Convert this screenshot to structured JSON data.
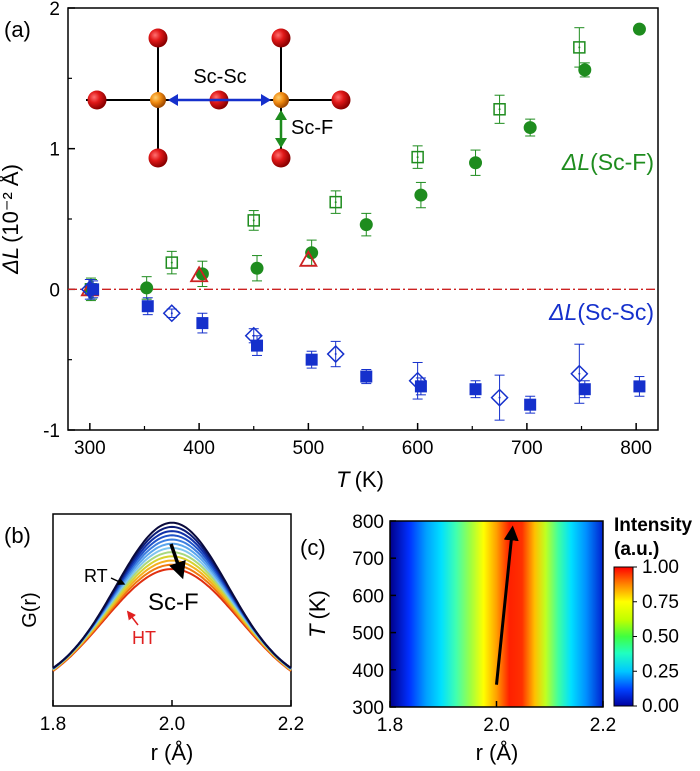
{
  "chart_data": [
    {
      "panel": "(a)",
      "type": "scatter",
      "xlabel_italic": "T",
      "xlabel_unit": "(K)",
      "ylabel_sym": "ΔL",
      "ylabel_unit": "(10⁻² Å)",
      "xlim": [
        280,
        820
      ],
      "ylim": [
        -1,
        2
      ],
      "xticks": [
        300,
        400,
        500,
        600,
        700,
        800
      ],
      "yticks": [
        -1,
        0,
        1,
        2
      ],
      "zero_line": true,
      "annotations": {
        "scf_label_sym": "ΔL",
        "scf_label_text": "(Sc-F)",
        "scsc_label_sym": "ΔL",
        "scsc_label_text": "(Sc-Sc)",
        "inset_scsc": "Sc-Sc",
        "inset_scf": "Sc-F"
      },
      "series": [
        {
          "name": "Sc-F filled circle",
          "marker": "circle-filled",
          "color": "#1e8c1e",
          "x": [
            302,
            352,
            403,
            453,
            503,
            553,
            603,
            653,
            703,
            753,
            803
          ],
          "y": [
            0.0,
            0.01,
            0.11,
            0.15,
            0.26,
            0.46,
            0.67,
            0.9,
            1.15,
            1.56,
            1.85
          ],
          "err": [
            0.07,
            0.08,
            0.09,
            0.09,
            0.09,
            0.08,
            0.09,
            0.09,
            0.06,
            0.05,
            0.02
          ]
        },
        {
          "name": "Sc-F open square",
          "marker": "square-open",
          "color": "#1e8c1e",
          "x": [
            301,
            375,
            450,
            525,
            600,
            675,
            748
          ],
          "y": [
            0.0,
            0.19,
            0.49,
            0.62,
            0.94,
            1.28,
            1.72
          ],
          "err": [
            0.08,
            0.08,
            0.07,
            0.08,
            0.08,
            0.1,
            0.14
          ]
        },
        {
          "name": "Sc-F open triangle",
          "marker": "triangle-open",
          "color": "#cc2222",
          "x": [
            300,
            400,
            500
          ],
          "y": [
            0.0,
            0.1,
            0.21
          ],
          "err": [
            0,
            0,
            0
          ]
        },
        {
          "name": "Sc-Sc filled square",
          "marker": "square-filled",
          "color": "#1530cc",
          "x": [
            303,
            353,
            403,
            453,
            503,
            553,
            603,
            653,
            703,
            753,
            803
          ],
          "y": [
            0.0,
            -0.12,
            -0.24,
            -0.4,
            -0.5,
            -0.62,
            -0.69,
            -0.71,
            -0.82,
            -0.71,
            -0.69
          ],
          "err": [
            0.06,
            0.06,
            0.07,
            0.07,
            0.06,
            0.05,
            0.06,
            0.06,
            0.06,
            0.06,
            0.07
          ]
        },
        {
          "name": "Sc-Sc open diamond",
          "marker": "diamond-open",
          "color": "#1530cc",
          "x": [
            300,
            375,
            450,
            525,
            600,
            675,
            748
          ],
          "y": [
            0.0,
            -0.17,
            -0.33,
            -0.46,
            -0.65,
            -0.77,
            -0.6
          ],
          "err": [
            0.07,
            0.03,
            0.05,
            0.09,
            0.13,
            0.16,
            0.21
          ]
        }
      ]
    },
    {
      "panel": "(b)",
      "type": "line",
      "ylabel": "G(r)",
      "xlabel": "r (Å)",
      "xlim": [
        1.8,
        2.2
      ],
      "xticks": [
        "1.8",
        "2.0",
        "2.2"
      ],
      "annotations": {
        "rt": "RT",
        "ht": "HT",
        "peak": "Sc-F"
      },
      "series_description": "G(r) peak curves from room temperature (RT, dark blue/black) to high temperature (HT, red); peak height decreases and broadens with temperature",
      "peak_center": 2.0,
      "curve_colors": [
        "#0a0a3c",
        "#0c1c78",
        "#1030a8",
        "#1f52c8",
        "#3c7ee0",
        "#5aa5ee",
        "#7fc5f0",
        "#a8d880",
        "#d8d230",
        "#f4b020",
        "#f07a10",
        "#e03010"
      ]
    },
    {
      "panel": "(c)",
      "type": "heatmap",
      "xlabel": "r (Å)",
      "ylabel_italic": "T",
      "ylabel_unit": "(K)",
      "xlim": [
        1.8,
        2.2
      ],
      "ylim": [
        300,
        800
      ],
      "xticks": [
        "1.8",
        "2.0",
        "2.2"
      ],
      "yticks": [
        300,
        400,
        500,
        600,
        700,
        800
      ],
      "peak_r_at_300K": 2.0,
      "peak_r_at_800K": 2.03,
      "colorbar": {
        "title_line1": "Intensity",
        "title_line2": "(a.u.)",
        "ticks": [
          "0.00",
          "0.25",
          "0.50",
          "0.75",
          "1.00"
        ]
      }
    }
  ]
}
